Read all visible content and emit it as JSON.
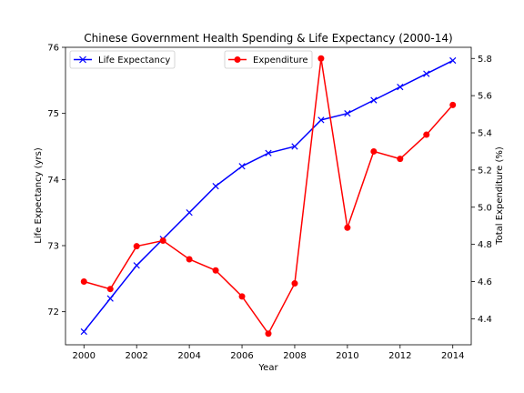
{
  "chart_data": {
    "type": "line",
    "title": "Chinese Government Health Spending & Life Expectancy (2000-14)",
    "xlabel": "Year",
    "ylabel_left": "Life Expectancy (yrs)",
    "ylabel_right": "Total Expenditure (%)",
    "x": [
      2000,
      2001,
      2002,
      2003,
      2004,
      2005,
      2006,
      2007,
      2008,
      2009,
      2010,
      2011,
      2012,
      2013,
      2014
    ],
    "xlim": [
      1999.3,
      2014.7
    ],
    "ylim_left": [
      71.5,
      76
    ],
    "ylim_right": [
      4.26,
      5.86
    ],
    "xticks": [
      2000,
      2002,
      2004,
      2006,
      2008,
      2010,
      2012,
      2014
    ],
    "yticks_left": [
      72,
      73,
      74,
      75,
      76
    ],
    "yticks_right": [
      4.4,
      4.6,
      4.8,
      5.0,
      5.2,
      5.4,
      5.6,
      5.8
    ],
    "series": [
      {
        "name": "Life Expectancy",
        "axis": "left",
        "color": "#0000ff",
        "marker": "x",
        "values": [
          71.7,
          72.2,
          72.7,
          73.1,
          73.5,
          73.9,
          74.2,
          74.4,
          74.5,
          74.9,
          75.0,
          75.2,
          75.4,
          75.6,
          75.8
        ]
      },
      {
        "name": "Expenditure",
        "axis": "right",
        "color": "#ff0000",
        "marker": "circle",
        "values": [
          4.6,
          4.56,
          4.79,
          4.82,
          4.72,
          4.66,
          4.52,
          4.32,
          4.59,
          5.8,
          4.89,
          5.3,
          5.26,
          5.39,
          5.55
        ]
      }
    ],
    "legend_positions": [
      "upper-left",
      "upper-center"
    ],
    "grid": false
  }
}
